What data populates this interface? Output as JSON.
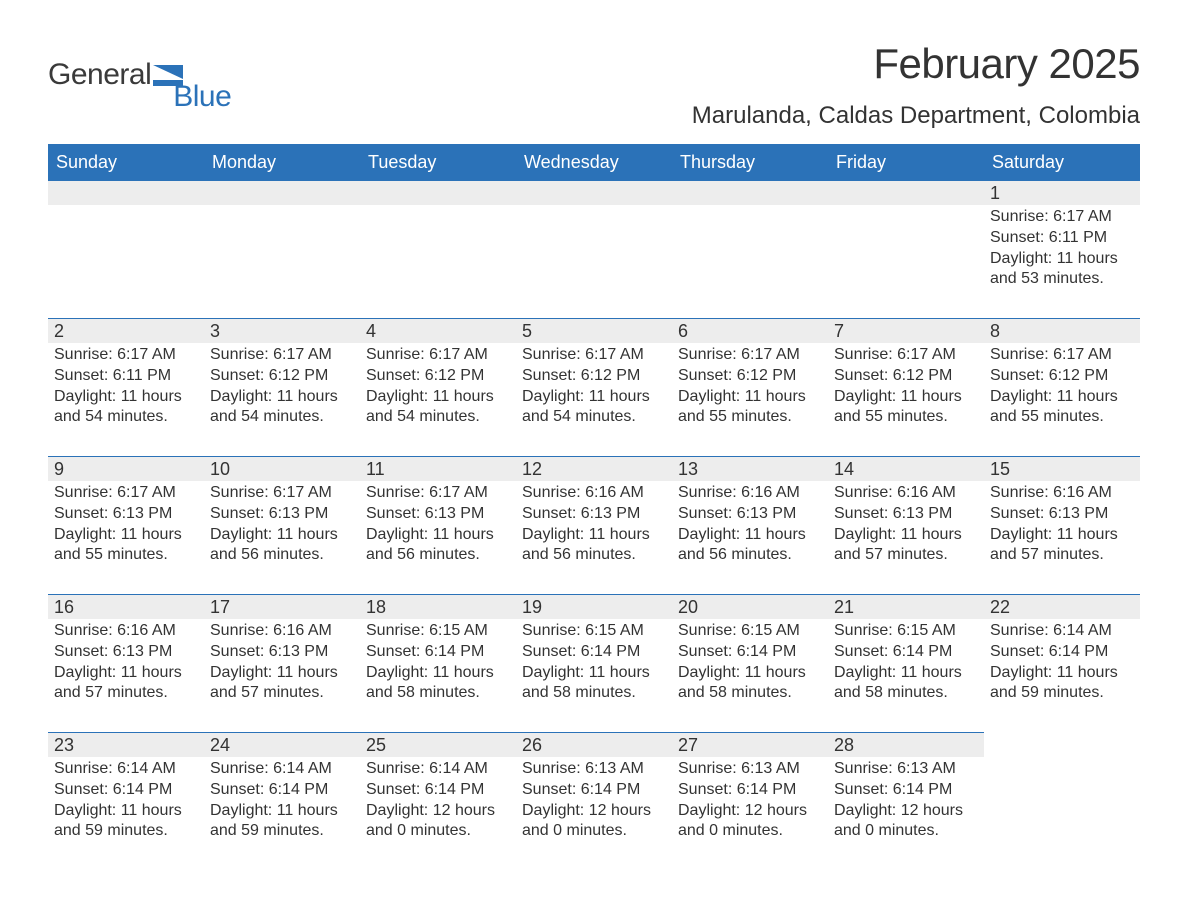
{
  "brand": {
    "word1": "General",
    "word2": "Blue",
    "color_blue": "#2b72b8",
    "color_gray": "#3a3a3a"
  },
  "title": "February 2025",
  "location": "Marulanda, Caldas Department, Colombia",
  "day_headers": [
    "Sunday",
    "Monday",
    "Tuesday",
    "Wednesday",
    "Thursday",
    "Friday",
    "Saturday"
  ],
  "colors": {
    "header_bg": "#2b72b8",
    "header_text": "#ffffff",
    "daynum_bg": "#ededed",
    "daynum_border": "#2b72b8",
    "body_text": "#333333",
    "page_bg": "#ffffff"
  },
  "typography": {
    "title_fontsize": 42,
    "location_fontsize": 24,
    "header_fontsize": 18,
    "daynum_fontsize": 18,
    "body_fontsize": 16,
    "logo_fontsize": 30
  },
  "weeks": [
    [
      {
        "n": "",
        "sunrise": "",
        "sunset": "",
        "day": ""
      },
      {
        "n": "",
        "sunrise": "",
        "sunset": "",
        "day": ""
      },
      {
        "n": "",
        "sunrise": "",
        "sunset": "",
        "day": ""
      },
      {
        "n": "",
        "sunrise": "",
        "sunset": "",
        "day": ""
      },
      {
        "n": "",
        "sunrise": "",
        "sunset": "",
        "day": ""
      },
      {
        "n": "",
        "sunrise": "",
        "sunset": "",
        "day": ""
      },
      {
        "n": "1",
        "sunrise": "Sunrise: 6:17 AM",
        "sunset": "Sunset: 6:11 PM",
        "day": "Daylight: 11 hours and 53 minutes."
      }
    ],
    [
      {
        "n": "2",
        "sunrise": "Sunrise: 6:17 AM",
        "sunset": "Sunset: 6:11 PM",
        "day": "Daylight: 11 hours and 54 minutes."
      },
      {
        "n": "3",
        "sunrise": "Sunrise: 6:17 AM",
        "sunset": "Sunset: 6:12 PM",
        "day": "Daylight: 11 hours and 54 minutes."
      },
      {
        "n": "4",
        "sunrise": "Sunrise: 6:17 AM",
        "sunset": "Sunset: 6:12 PM",
        "day": "Daylight: 11 hours and 54 minutes."
      },
      {
        "n": "5",
        "sunrise": "Sunrise: 6:17 AM",
        "sunset": "Sunset: 6:12 PM",
        "day": "Daylight: 11 hours and 54 minutes."
      },
      {
        "n": "6",
        "sunrise": "Sunrise: 6:17 AM",
        "sunset": "Sunset: 6:12 PM",
        "day": "Daylight: 11 hours and 55 minutes."
      },
      {
        "n": "7",
        "sunrise": "Sunrise: 6:17 AM",
        "sunset": "Sunset: 6:12 PM",
        "day": "Daylight: 11 hours and 55 minutes."
      },
      {
        "n": "8",
        "sunrise": "Sunrise: 6:17 AM",
        "sunset": "Sunset: 6:12 PM",
        "day": "Daylight: 11 hours and 55 minutes."
      }
    ],
    [
      {
        "n": "9",
        "sunrise": "Sunrise: 6:17 AM",
        "sunset": "Sunset: 6:13 PM",
        "day": "Daylight: 11 hours and 55 minutes."
      },
      {
        "n": "10",
        "sunrise": "Sunrise: 6:17 AM",
        "sunset": "Sunset: 6:13 PM",
        "day": "Daylight: 11 hours and 56 minutes."
      },
      {
        "n": "11",
        "sunrise": "Sunrise: 6:17 AM",
        "sunset": "Sunset: 6:13 PM",
        "day": "Daylight: 11 hours and 56 minutes."
      },
      {
        "n": "12",
        "sunrise": "Sunrise: 6:16 AM",
        "sunset": "Sunset: 6:13 PM",
        "day": "Daylight: 11 hours and 56 minutes."
      },
      {
        "n": "13",
        "sunrise": "Sunrise: 6:16 AM",
        "sunset": "Sunset: 6:13 PM",
        "day": "Daylight: 11 hours and 56 minutes."
      },
      {
        "n": "14",
        "sunrise": "Sunrise: 6:16 AM",
        "sunset": "Sunset: 6:13 PM",
        "day": "Daylight: 11 hours and 57 minutes."
      },
      {
        "n": "15",
        "sunrise": "Sunrise: 6:16 AM",
        "sunset": "Sunset: 6:13 PM",
        "day": "Daylight: 11 hours and 57 minutes."
      }
    ],
    [
      {
        "n": "16",
        "sunrise": "Sunrise: 6:16 AM",
        "sunset": "Sunset: 6:13 PM",
        "day": "Daylight: 11 hours and 57 minutes."
      },
      {
        "n": "17",
        "sunrise": "Sunrise: 6:16 AM",
        "sunset": "Sunset: 6:13 PM",
        "day": "Daylight: 11 hours and 57 minutes."
      },
      {
        "n": "18",
        "sunrise": "Sunrise: 6:15 AM",
        "sunset": "Sunset: 6:14 PM",
        "day": "Daylight: 11 hours and 58 minutes."
      },
      {
        "n": "19",
        "sunrise": "Sunrise: 6:15 AM",
        "sunset": "Sunset: 6:14 PM",
        "day": "Daylight: 11 hours and 58 minutes."
      },
      {
        "n": "20",
        "sunrise": "Sunrise: 6:15 AM",
        "sunset": "Sunset: 6:14 PM",
        "day": "Daylight: 11 hours and 58 minutes."
      },
      {
        "n": "21",
        "sunrise": "Sunrise: 6:15 AM",
        "sunset": "Sunset: 6:14 PM",
        "day": "Daylight: 11 hours and 58 minutes."
      },
      {
        "n": "22",
        "sunrise": "Sunrise: 6:14 AM",
        "sunset": "Sunset: 6:14 PM",
        "day": "Daylight: 11 hours and 59 minutes."
      }
    ],
    [
      {
        "n": "23",
        "sunrise": "Sunrise: 6:14 AM",
        "sunset": "Sunset: 6:14 PM",
        "day": "Daylight: 11 hours and 59 minutes."
      },
      {
        "n": "24",
        "sunrise": "Sunrise: 6:14 AM",
        "sunset": "Sunset: 6:14 PM",
        "day": "Daylight: 11 hours and 59 minutes."
      },
      {
        "n": "25",
        "sunrise": "Sunrise: 6:14 AM",
        "sunset": "Sunset: 6:14 PM",
        "day": "Daylight: 12 hours and 0 minutes."
      },
      {
        "n": "26",
        "sunrise": "Sunrise: 6:13 AM",
        "sunset": "Sunset: 6:14 PM",
        "day": "Daylight: 12 hours and 0 minutes."
      },
      {
        "n": "27",
        "sunrise": "Sunrise: 6:13 AM",
        "sunset": "Sunset: 6:14 PM",
        "day": "Daylight: 12 hours and 0 minutes."
      },
      {
        "n": "28",
        "sunrise": "Sunrise: 6:13 AM",
        "sunset": "Sunset: 6:14 PM",
        "day": "Daylight: 12 hours and 0 minutes."
      },
      {
        "n": "",
        "sunrise": "",
        "sunset": "",
        "day": ""
      }
    ]
  ]
}
